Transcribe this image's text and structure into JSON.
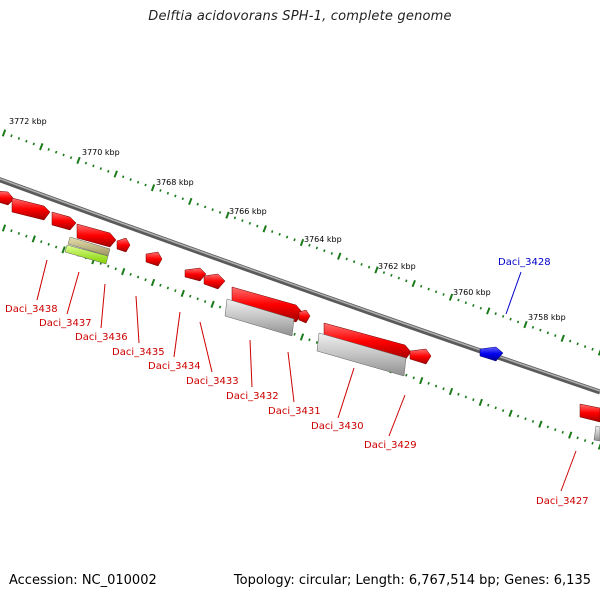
{
  "title": "Delftia acidovorans SPH-1, complete genome",
  "footer": {
    "accession": "Accession: NC_010002",
    "summary": "Topology: circular; Length: 6,767,514 bp; Genes: 6,135"
  },
  "colors": {
    "background": "#ffffff",
    "backbone": "#808080",
    "tick": "#1a7a1a",
    "forward_gene": "#ff1010",
    "reverse_gene": "#ff0000",
    "selected_gene": "#0000ee",
    "rna_gene": "#c0c0c0",
    "pseudo_gene": "#b8b070",
    "misc_feature": "#a0f020",
    "label_red": "#cc0000",
    "label_blue": "#0000cc"
  },
  "scale": {
    "unit": "kbp",
    "labels": [
      "3772 kbp",
      "3770 kbp",
      "3768 kbp",
      "3766 kbp",
      "3764 kbp",
      "3762 kbp",
      "3760 kbp",
      "3758 kbp"
    ]
  },
  "genes": [
    {
      "label": "Daci_3438",
      "color": "red"
    },
    {
      "label": "Daci_3437",
      "color": "red"
    },
    {
      "label": "Daci_3436",
      "color": "red"
    },
    {
      "label": "Daci_3435",
      "color": "red"
    },
    {
      "label": "Daci_3434",
      "color": "red"
    },
    {
      "label": "Daci_3433",
      "color": "red"
    },
    {
      "label": "Daci_3432",
      "color": "red"
    },
    {
      "label": "Daci_3431",
      "color": "red"
    },
    {
      "label": "Daci_3430",
      "color": "red"
    },
    {
      "label": "Daci_3429",
      "color": "red"
    },
    {
      "label": "Daci_3428",
      "color": "blue"
    },
    {
      "label": "Daci_3427",
      "color": "red"
    }
  ]
}
